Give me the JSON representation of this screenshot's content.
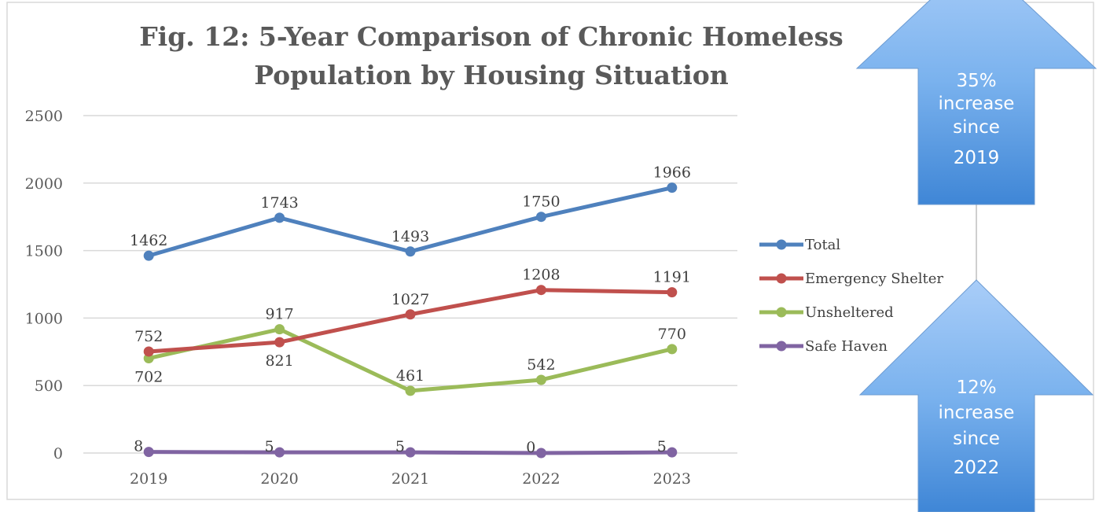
{
  "chart_data": {
    "type": "line",
    "title": "Fig. 12: 5-Year Comparison of Chronic Homeless Population by Housing Situation",
    "title_lines": [
      "Fig. 12: 5-Year Comparison of Chronic Homeless",
      "Population by Housing Situation"
    ],
    "categories": [
      "2019",
      "2020",
      "2021",
      "2022",
      "2023"
    ],
    "ylim": [
      0,
      2500
    ],
    "yticks": [
      0,
      500,
      1000,
      1500,
      2000,
      2500
    ],
    "ytick_labels": [
      "0",
      "500",
      "1000",
      "1500",
      "2000",
      "2500"
    ],
    "grid": true,
    "legend_position": "right",
    "series": [
      {
        "name": "Total",
        "color": "#4F81BD",
        "values": [
          1462,
          1743,
          1493,
          1750,
          1966
        ],
        "labels": [
          "1462",
          "1743",
          "1493",
          "1750",
          "1966"
        ]
      },
      {
        "name": "Emergency Shelter",
        "color": "#C0504D",
        "values": [
          752,
          821,
          1027,
          1208,
          1191
        ],
        "labels": [
          "752",
          "821",
          "1027",
          "1208",
          "1191"
        ]
      },
      {
        "name": "Unsheltered",
        "color": "#9BBB59",
        "values": [
          702,
          917,
          461,
          542,
          770
        ],
        "labels": [
          "702",
          "917",
          "461",
          "542",
          "770"
        ]
      },
      {
        "name": "Safe Haven",
        "color": "#8064A2",
        "values": [
          8,
          5,
          5,
          0,
          5
        ],
        "labels": [
          "8",
          "5",
          "5",
          "0",
          "5"
        ]
      }
    ]
  },
  "callouts": [
    {
      "lines": [
        "35%",
        "increase",
        "since",
        "2019"
      ]
    },
    {
      "lines": [
        "12%",
        "increase",
        "since",
        "2022"
      ]
    }
  ]
}
